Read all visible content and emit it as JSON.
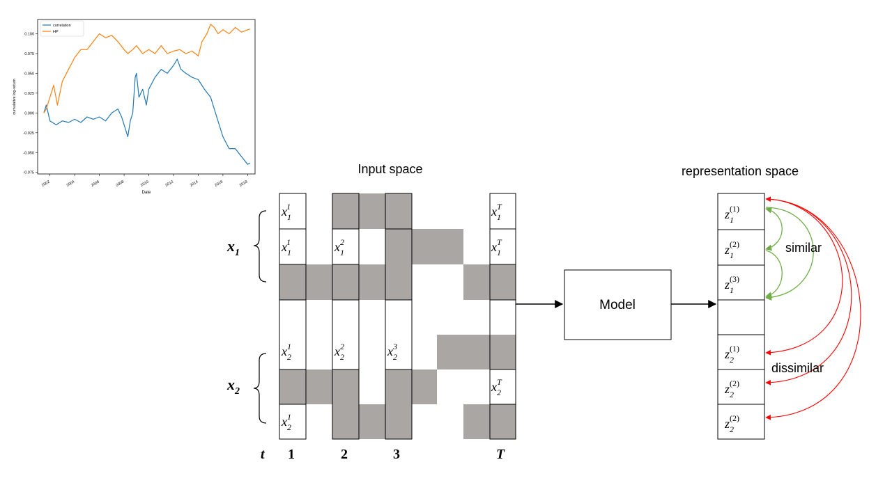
{
  "chart_data": {
    "type": "line",
    "xlabel": "Date",
    "ylabel": "cumulative log-return",
    "xlim": [
      2001.0,
      2018.6
    ],
    "ylim": [
      -0.077,
      0.118
    ],
    "x_ticks": [
      "2002",
      "2004",
      "2006",
      "2008",
      "2010",
      "2012",
      "2014",
      "2016",
      "2018"
    ],
    "y_ticks": [
      "0.100",
      "0.075",
      "0.050",
      "0.025",
      "0.000",
      "-0.025",
      "-0.050",
      "-0.075"
    ],
    "legend_position": "top-left",
    "grid": false,
    "series": [
      {
        "name": "correlation",
        "color": "#1f77b4",
        "points": [
          [
            2001.5,
            0.0
          ],
          [
            2001.7,
            0.01
          ],
          [
            2002.0,
            -0.01
          ],
          [
            2002.5,
            -0.015
          ],
          [
            2003.0,
            -0.01
          ],
          [
            2003.5,
            -0.012
          ],
          [
            2004.0,
            -0.008
          ],
          [
            2004.5,
            -0.012
          ],
          [
            2005.0,
            -0.005
          ],
          [
            2005.5,
            -0.008
          ],
          [
            2006.0,
            -0.005
          ],
          [
            2006.5,
            -0.01
          ],
          [
            2007.0,
            0.0
          ],
          [
            2007.5,
            0.005
          ],
          [
            2007.8,
            -0.005
          ],
          [
            2008.0,
            -0.015
          ],
          [
            2008.3,
            -0.03
          ],
          [
            2008.5,
            -0.01
          ],
          [
            2008.7,
            0.0
          ],
          [
            2008.9,
            0.045
          ],
          [
            2009.0,
            0.05
          ],
          [
            2009.2,
            0.02
          ],
          [
            2009.5,
            0.03
          ],
          [
            2009.8,
            0.01
          ],
          [
            2010.0,
            0.03
          ],
          [
            2010.5,
            0.045
          ],
          [
            2011.0,
            0.055
          ],
          [
            2011.5,
            0.05
          ],
          [
            2012.0,
            0.06
          ],
          [
            2012.3,
            0.068
          ],
          [
            2012.6,
            0.055
          ],
          [
            2013.0,
            0.05
          ],
          [
            2013.5,
            0.045
          ],
          [
            2014.0,
            0.042
          ],
          [
            2014.5,
            0.03
          ],
          [
            2015.0,
            0.02
          ],
          [
            2015.5,
            -0.005
          ],
          [
            2016.0,
            -0.03
          ],
          [
            2016.5,
            -0.045
          ],
          [
            2017.0,
            -0.045
          ],
          [
            2017.5,
            -0.055
          ],
          [
            2018.0,
            -0.065
          ],
          [
            2018.2,
            -0.063
          ]
        ]
      },
      {
        "name": "HP",
        "color": "#ff7f0e",
        "points": [
          [
            2001.5,
            0.0
          ],
          [
            2001.7,
            0.005
          ],
          [
            2002.0,
            0.02
          ],
          [
            2002.3,
            0.035
          ],
          [
            2002.6,
            0.01
          ],
          [
            2003.0,
            0.04
          ],
          [
            2003.5,
            0.055
          ],
          [
            2004.0,
            0.07
          ],
          [
            2004.5,
            0.08
          ],
          [
            2005.0,
            0.08
          ],
          [
            2005.5,
            0.09
          ],
          [
            2006.0,
            0.1
          ],
          [
            2006.5,
            0.095
          ],
          [
            2007.0,
            0.098
          ],
          [
            2007.5,
            0.09
          ],
          [
            2008.0,
            0.08
          ],
          [
            2008.3,
            0.075
          ],
          [
            2008.7,
            0.08
          ],
          [
            2009.0,
            0.085
          ],
          [
            2009.5,
            0.075
          ],
          [
            2010.0,
            0.08
          ],
          [
            2010.5,
            0.075
          ],
          [
            2011.0,
            0.085
          ],
          [
            2011.5,
            0.075
          ],
          [
            2012.0,
            0.078
          ],
          [
            2012.5,
            0.08
          ],
          [
            2013.0,
            0.075
          ],
          [
            2013.5,
            0.078
          ],
          [
            2014.0,
            0.072
          ],
          [
            2014.3,
            0.09
          ],
          [
            2014.7,
            0.1
          ],
          [
            2015.0,
            0.112
          ],
          [
            2015.3,
            0.108
          ],
          [
            2015.6,
            0.1
          ],
          [
            2016.0,
            0.105
          ],
          [
            2016.5,
            0.1
          ],
          [
            2017.0,
            0.108
          ],
          [
            2017.5,
            0.102
          ],
          [
            2018.0,
            0.105
          ],
          [
            2018.2,
            0.106
          ]
        ]
      }
    ]
  },
  "diagram": {
    "input_title": "Input space",
    "repr_title": "representation space",
    "model_label": "Model",
    "similar_label": "similar",
    "dissimilar_label": "dissimilar",
    "x1_label": {
      "base": "x",
      "sub": "1"
    },
    "x2_label": {
      "base": "x",
      "sub": "2"
    },
    "t_label": "t",
    "col_labels": [
      "1",
      "2",
      "3",
      "T"
    ],
    "input_cells": [
      {
        "base": "x",
        "sub": "1",
        "sup": "1"
      },
      {
        "base": "x",
        "sub": "1",
        "sup": "1"
      },
      {
        "base": "x",
        "sub": "1",
        "sup": "2"
      },
      {
        "base": "x",
        "sub": "2",
        "sup": "1"
      },
      {
        "base": "x",
        "sub": "2",
        "sup": "2"
      },
      {
        "base": "x",
        "sub": "2",
        "sup": "3"
      },
      {
        "base": "x",
        "sub": "2",
        "sup": "1"
      },
      {
        "base": "x",
        "sub": "1",
        "sup": "T"
      },
      {
        "base": "x",
        "sub": "1",
        "sup": "T"
      },
      {
        "base": "x",
        "sub": "2",
        "sup": "T"
      }
    ],
    "repr_cells": [
      {
        "base": "z",
        "sub": "1",
        "sup": "(1)"
      },
      {
        "base": "z",
        "sub": "1",
        "sup": "(2)"
      },
      {
        "base": "z",
        "sub": "1",
        "sup": "(3)"
      },
      {
        "base": "z",
        "sub": "2",
        "sup": "(1)"
      },
      {
        "base": "z",
        "sub": "2",
        "sup": "(2)"
      },
      {
        "base": "z",
        "sub": "2",
        "sup": "(2)"
      }
    ],
    "colors": {
      "gray_fill": "#a9a6a4",
      "similar_arrow": "#70ad47",
      "dissimilar_arrow": "#ff0000"
    }
  }
}
